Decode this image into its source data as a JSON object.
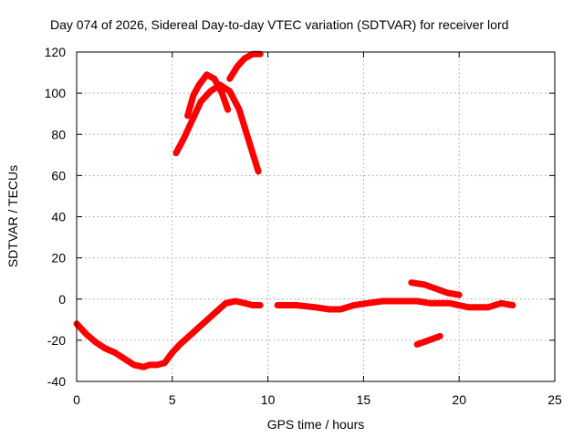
{
  "chart_data": {
    "type": "line",
    "title": "Day 074 of 2026, Sidereal Day-to-day VTEC variation (SDTVAR) for receiver lord",
    "xlabel": "GPS time / hours",
    "ylabel": "SDTVAR / TECUs",
    "xlim": [
      0,
      25
    ],
    "ylim": [
      -40,
      120
    ],
    "xticks": [
      0,
      5,
      10,
      15,
      20,
      25
    ],
    "yticks": [
      -40,
      -20,
      0,
      20,
      40,
      60,
      80,
      100,
      120
    ],
    "grid": true,
    "series_color": "#ff0000",
    "series": [
      {
        "name": "main-trace",
        "x": [
          0,
          0.5,
          1,
          1.5,
          2,
          2.5,
          3,
          3.5,
          3.8,
          4.2,
          4.6,
          5.0,
          5.4,
          6.0,
          6.6,
          7.2,
          7.8,
          8.3,
          8.8,
          9.2,
          9.6
        ],
        "y": [
          -12,
          -17,
          -21,
          -24,
          -26,
          -29,
          -32,
          -33,
          -32,
          -32,
          -31,
          -26,
          -22,
          -17,
          -12,
          -7,
          -2,
          -1,
          -2,
          -3,
          -3
        ]
      },
      {
        "name": "trace-2",
        "x": [
          10.5,
          11.5,
          12.5,
          13.2,
          13.8,
          14.5,
          15.2,
          16,
          17,
          17.8,
          18.5,
          19.5,
          20.5,
          21.5,
          22.2,
          22.8
        ],
        "y": [
          -3,
          -3,
          -4,
          -5,
          -5,
          -3,
          -2,
          -1,
          -1,
          -1,
          -2,
          -2,
          -4,
          -4,
          -2,
          -3
        ]
      },
      {
        "name": "arc-peak",
        "x": [
          5.2,
          5.6,
          6.0,
          6.5,
          7.0,
          7.5,
          8.0,
          8.5,
          9.0,
          9.5
        ],
        "y": [
          71,
          78,
          86,
          96,
          101,
          104,
          101,
          92,
          77,
          62
        ]
      },
      {
        "name": "arc-upper",
        "x": [
          5.8,
          6.1,
          6.4,
          6.8,
          7.2,
          7.6,
          7.9
        ],
        "y": [
          89,
          99,
          104,
          109,
          107,
          100,
          92
        ]
      },
      {
        "name": "arc-top",
        "x": [
          8.0,
          8.4,
          8.8,
          9.2,
          9.6
        ],
        "y": [
          107,
          113,
          117,
          119,
          119
        ]
      },
      {
        "name": "late-positive",
        "x": [
          17.5,
          18.2,
          18.8,
          19.4,
          20.0
        ],
        "y": [
          8,
          7,
          5,
          3,
          2
        ]
      },
      {
        "name": "late-negative",
        "x": [
          17.8,
          18.4,
          19.0
        ],
        "y": [
          -22,
          -20,
          -18
        ]
      }
    ]
  }
}
